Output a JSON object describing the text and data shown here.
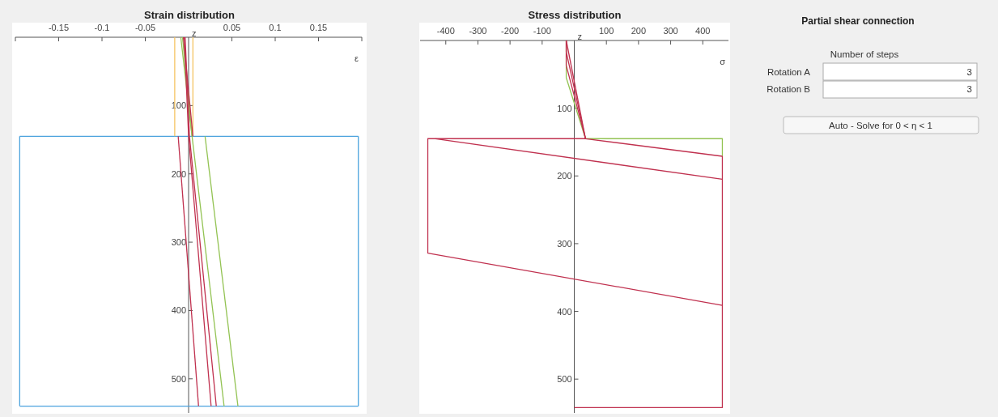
{
  "chart_data": [
    {
      "type": "line",
      "title": "Strain distribution",
      "xlabel": "ε",
      "ylabel": "z",
      "xlim": [
        -0.2,
        0.2
      ],
      "ylim": [
        550,
        0
      ],
      "xticks": [
        {
          "value": -0.2,
          "label": null
        },
        -0.15,
        -0.1,
        -0.05,
        0.05,
        0.1,
        0.15,
        {
          "value": 0.2,
          "label": null
        }
      ],
      "yticks": [
        100,
        200,
        300,
        400,
        500
      ],
      "series": [
        {
          "color": "#4ca3dd",
          "x": [
            -0.195,
            0.196
          ],
          "values": [
            145,
            145
          ]
        },
        {
          "color": "#4ca3dd",
          "x": [
            -0.195,
            0.196
          ],
          "values": [
            540,
            540
          ]
        },
        {
          "color": "#4ca3dd",
          "x": [
            -0.195,
            -0.195
          ],
          "values": [
            145,
            540
          ]
        },
        {
          "color": "#4ca3dd",
          "x": [
            0.196,
            0.196
          ],
          "values": [
            145,
            540
          ]
        },
        {
          "color": "#f5c463",
          "x": [
            -0.016,
            -0.016
          ],
          "values": [
            0,
            145
          ]
        },
        {
          "color": "#f5c463",
          "x": [
            0.005,
            0.005
          ],
          "values": [
            0,
            145
          ]
        },
        {
          "color": "#93c353",
          "x": [
            -0.009,
            0.004,
            0.041
          ],
          "values": [
            0,
            145,
            540
          ]
        },
        {
          "color": "#93c353",
          "x": [
            -0.007,
            0.004
          ],
          "values": [
            0,
            145
          ]
        },
        {
          "color": "#c0314f",
          "x": [
            -0.006,
            0.005
          ],
          "values": [
            0,
            145
          ]
        },
        {
          "color": "#c0314f",
          "x": [
            -0.005,
            0,
            0.026
          ],
          "values": [
            0,
            145,
            540
          ]
        },
        {
          "color": "#c0314f",
          "x": [
            -0.004,
            0.001,
            0.032
          ],
          "values": [
            0,
            145,
            540
          ]
        },
        {
          "color": "#93c353",
          "x": [
            0.019,
            0.057
          ],
          "values": [
            145,
            540
          ]
        },
        {
          "color": "#c0314f",
          "x": [
            -0.012,
            0.0115
          ],
          "values": [
            145,
            540
          ]
        }
      ]
    },
    {
      "type": "line",
      "title": "Stress distribution",
      "xlabel": "σ",
      "ylabel": "z",
      "xlim": [
        -480,
        480
      ],
      "ylim": [
        550,
        0
      ],
      "xticks": [
        -400,
        -300,
        -200,
        -100,
        100,
        200,
        300,
        400
      ],
      "yticks": [
        100,
        200,
        300,
        400,
        500
      ],
      "series": [
        {
          "color": "#93c353",
          "x": [
            -25,
            -25,
            35
          ],
          "values": [
            0,
            55,
            145
          ]
        },
        {
          "color": "#93c353",
          "x": [
            35,
            461,
            461
          ],
          "values": [
            145,
            145,
            171
          ]
        },
        {
          "color": "#c0314f",
          "x": [
            -25,
            35
          ],
          "values": [
            0,
            145
          ]
        },
        {
          "color": "#c0314f",
          "x": [
            -25,
            -25,
            35
          ],
          "values": [
            0,
            17,
            145
          ]
        },
        {
          "color": "#c0314f",
          "x": [
            -25,
            -25,
            35
          ],
          "values": [
            0,
            37,
            145
          ]
        },
        {
          "color": "#c0314f",
          "x": [
            461,
            35,
            -456,
            -456,
            461
          ],
          "values": [
            171,
            145,
            145,
            314,
            391
          ]
        },
        {
          "color": "#c0314f",
          "x": [
            -432,
            461
          ],
          "values": [
            145,
            205
          ]
        },
        {
          "color": "#c0314f",
          "x": [
            0,
            461,
            461
          ],
          "values": [
            542,
            542,
            171
          ]
        }
      ]
    },
    {
      "type": "other",
      "title": "Partial shear connection",
      "annotations": [
        "Number of steps",
        "Rotation A",
        "3",
        "Rotation B",
        "3",
        "Auto - Solve for 0 < η < 1"
      ]
    }
  ]
}
